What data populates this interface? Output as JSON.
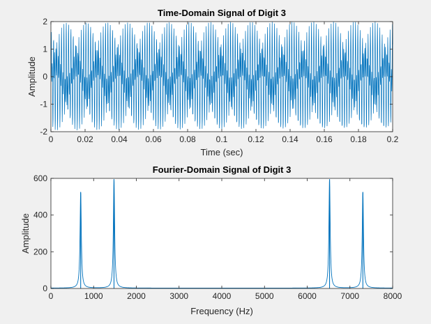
{
  "chart_data": [
    {
      "type": "line",
      "title": "Time-Domain Signal of Digit 3",
      "xlabel": "Time (sec)",
      "ylabel": "Amplitude",
      "xlim": [
        0,
        0.2
      ],
      "ylim": [
        -2,
        2
      ],
      "xticks": [
        0,
        0.02,
        0.04,
        0.06,
        0.08,
        0.1,
        0.12,
        0.14,
        0.16,
        0.18,
        0.2
      ],
      "xtick_labels": [
        "0",
        "0.02",
        "0.04",
        "0.06",
        "0.08",
        "0.1",
        "0.12",
        "0.14",
        "0.16",
        "0.18",
        "0.2"
      ],
      "yticks": [
        -2,
        -1,
        0,
        1,
        2
      ],
      "ytick_labels": [
        "-2",
        "-1",
        "0",
        "1",
        "2"
      ],
      "series": [
        {
          "signal": "sum of two sinusoids",
          "frequencies_hz": [
            697,
            1477
          ],
          "amplitudes": [
            1,
            1
          ],
          "sample_rate_hz": 8000,
          "color": "#0072BD"
        }
      ],
      "grid": false
    },
    {
      "type": "line",
      "title": "Fourier-Domain Signal of Digit 3",
      "xlabel": "Frequency (Hz)",
      "ylabel": "Amplitude",
      "xlim": [
        0,
        8000
      ],
      "ylim": [
        0,
        600
      ],
      "xticks": [
        0,
        1000,
        2000,
        3000,
        4000,
        5000,
        6000,
        7000,
        8000
      ],
      "xtick_labels": [
        "0",
        "1000",
        "2000",
        "3000",
        "4000",
        "5000",
        "6000",
        "7000",
        "8000"
      ],
      "yticks": [
        0,
        200,
        400,
        600
      ],
      "ytick_labels": [
        "0",
        "200",
        "400",
        "600"
      ],
      "series": [
        {
          "peaks": [
            {
              "x": 697,
              "y": 525
            },
            {
              "x": 1477,
              "y": 595
            },
            {
              "x": 6523,
              "y": 595
            },
            {
              "x": 7303,
              "y": 525
            }
          ],
          "color": "#0072BD"
        }
      ],
      "grid": false
    }
  ]
}
